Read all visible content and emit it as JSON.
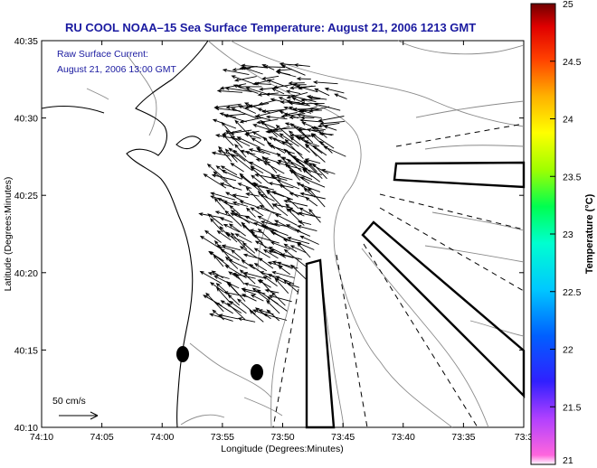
{
  "title": "RU COOL  NOAA–15  Sea Surface Temperature:  August 21, 2006 1213 GMT",
  "annotation": {
    "line1": "Raw Surface Current:",
    "line2": "August 21, 2006 13:00 GMT"
  },
  "axes": {
    "xlabel": "Longitude (Degrees:Minutes)",
    "ylabel": "Latitude (Degrees:Minutes)",
    "x_ticks": [
      "74:10",
      "74:05",
      "74:00",
      "73:55",
      "73:50",
      "73:45",
      "73:40",
      "73:35",
      "73:3"
    ],
    "y_ticks": [
      "40:35",
      "40:30",
      "40:25",
      "40:20",
      "40:15",
      "40:10"
    ]
  },
  "colorbar": {
    "label": "Temperature (°C)",
    "ticks": [
      "25",
      "24.5",
      "24",
      "23.5",
      "23",
      "22.5",
      "22",
      "21.5",
      "21"
    ],
    "min": 21,
    "max": 25
  },
  "scale_arrow": {
    "label": "50 cm/s",
    "speed_cm_s": 50
  },
  "colors": {
    "title": "#1a1aa0",
    "land_outline": "#000000",
    "bathymetry": "#8a8a8a",
    "vectors": "#000000"
  }
}
